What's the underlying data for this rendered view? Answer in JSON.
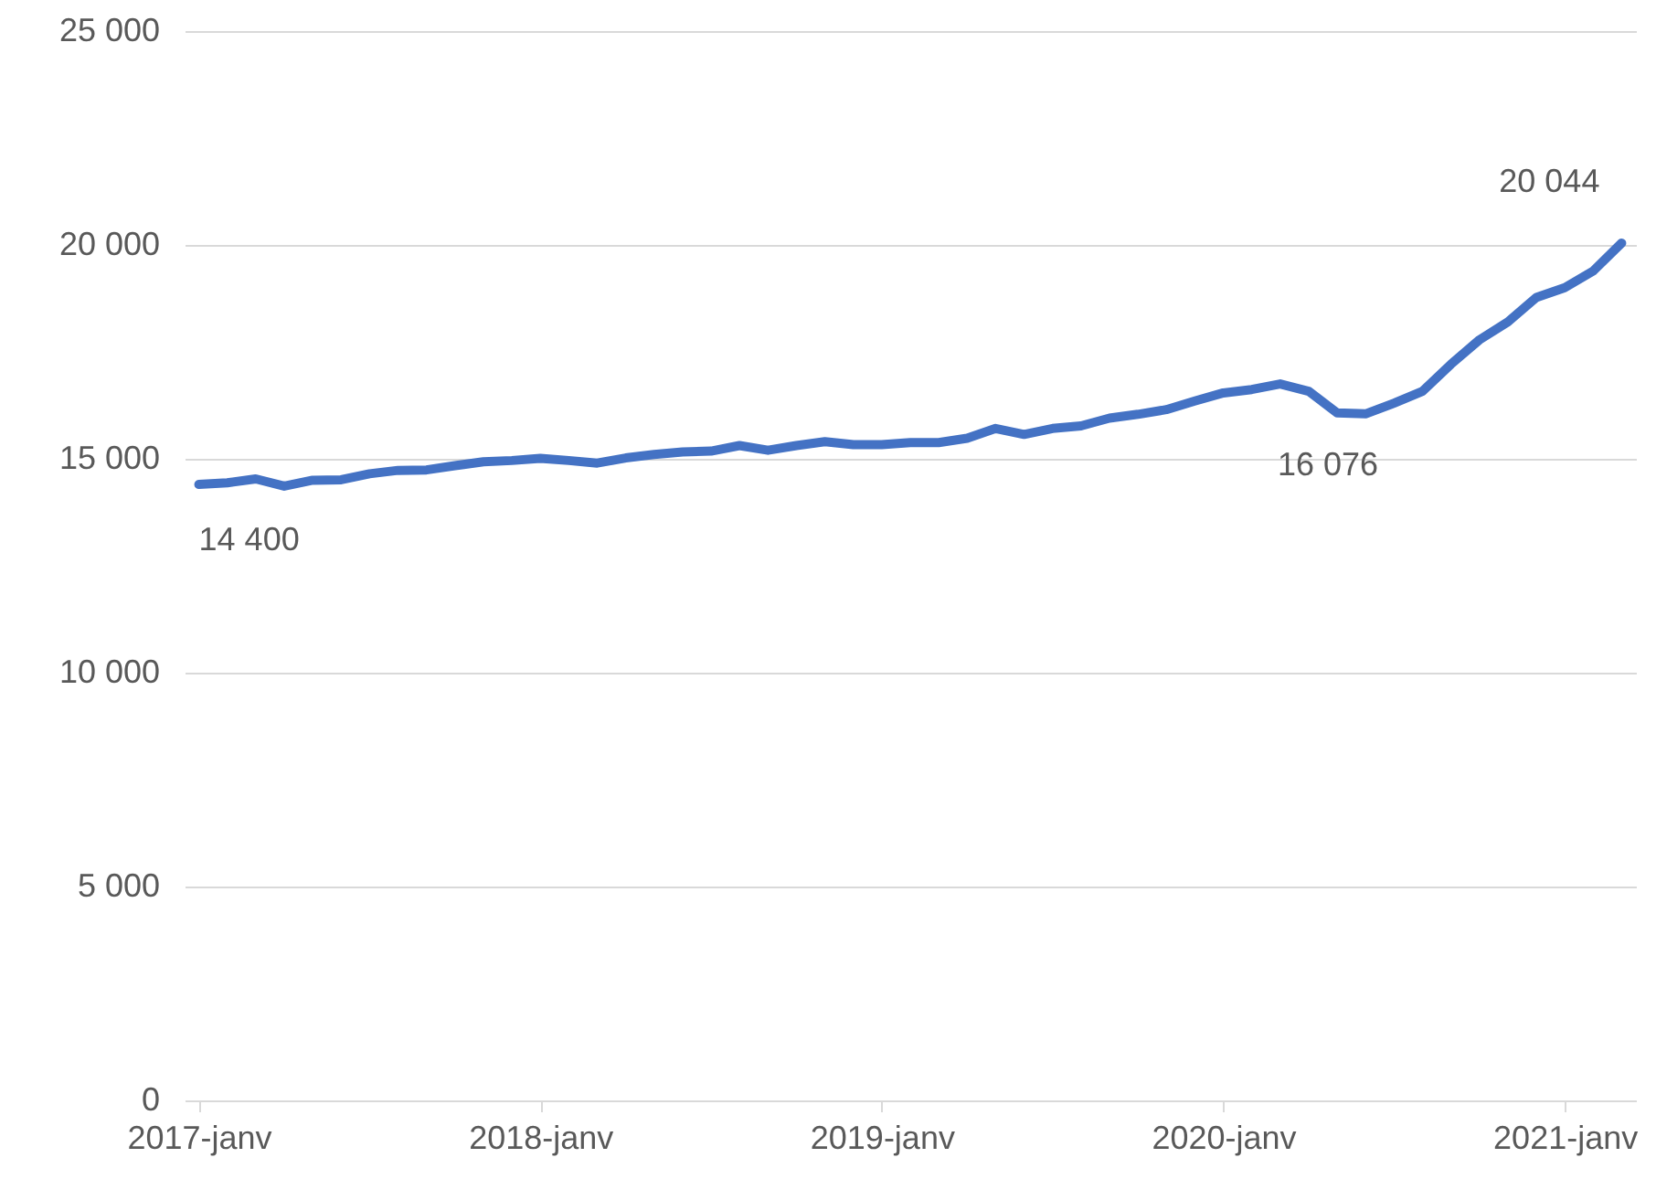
{
  "chart_data": {
    "type": "line",
    "categories": [
      "2017-janv",
      null,
      null,
      null,
      null,
      null,
      null,
      null,
      null,
      null,
      null,
      null,
      "2018-janv",
      null,
      null,
      null,
      null,
      null,
      null,
      null,
      null,
      null,
      null,
      null,
      "2019-janv",
      null,
      null,
      null,
      null,
      null,
      null,
      null,
      null,
      null,
      null,
      null,
      "2020-janv",
      null,
      null,
      null,
      null,
      null,
      null,
      null,
      null,
      null,
      null,
      null,
      "2021-janv",
      null,
      null
    ],
    "series": [
      {
        "color": "#4472c4",
        "values": [
          14400,
          14440,
          14530,
          14360,
          14500,
          14510,
          14650,
          14730,
          14740,
          14840,
          14930,
          14960,
          15010,
          14960,
          14900,
          15020,
          15100,
          15160,
          15180,
          15310,
          15200,
          15310,
          15400,
          15330,
          15330,
          15380,
          15380,
          15480,
          15710,
          15570,
          15710,
          15770,
          15950,
          16040,
          16150,
          16350,
          16540,
          16620,
          16750,
          16580,
          16076,
          16050,
          16300,
          16580,
          17210,
          17780,
          18200,
          18770,
          19000,
          19390,
          20044
        ],
        "value_labels": [
          "14 400",
          null,
          null,
          null,
          null,
          null,
          null,
          null,
          null,
          null,
          null,
          null,
          null,
          null,
          null,
          null,
          null,
          null,
          null,
          null,
          null,
          null,
          null,
          null,
          null,
          null,
          null,
          null,
          null,
          null,
          null,
          null,
          null,
          null,
          null,
          null,
          null,
          null,
          null,
          null,
          "16 076",
          null,
          null,
          null,
          null,
          null,
          null,
          null,
          null,
          null,
          "20 044"
        ]
      }
    ],
    "ylim": [
      0,
      25000
    ],
    "yticks": [
      {
        "value": 0,
        "label": "0"
      },
      {
        "value": 5000,
        "label": "5 000"
      },
      {
        "value": 10000,
        "label": "10 000"
      },
      {
        "value": 15000,
        "label": "15 000"
      },
      {
        "value": 20000,
        "label": "20 000"
      },
      {
        "value": 25000,
        "label": "25 000"
      }
    ],
    "grid": "y",
    "marker": "none",
    "line_style": "solid"
  }
}
